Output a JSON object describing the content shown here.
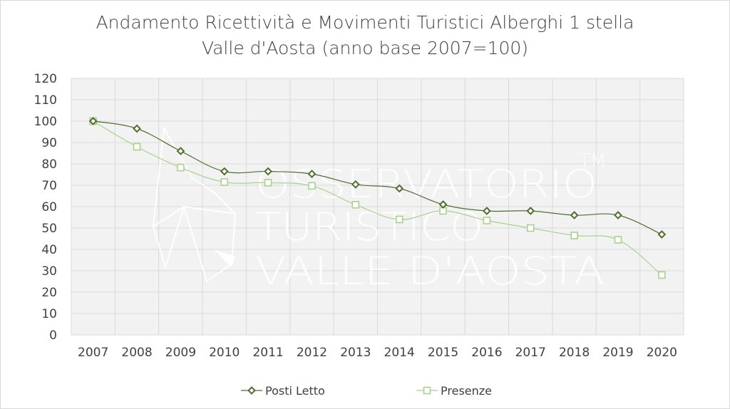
{
  "chart_data": {
    "type": "line",
    "title_line1": "Andamento Ricettività e Movimenti Turistici Alberghi 1 stella",
    "title_line2": "Valle d'Aosta (anno base 2007=100)",
    "xlabel": "",
    "ylabel": "",
    "categories": [
      "2007",
      "2008",
      "2009",
      "2010",
      "2011",
      "2012",
      "2013",
      "2014",
      "2015",
      "2016",
      "2017",
      "2018",
      "2019",
      "2020"
    ],
    "ylim": [
      0,
      120
    ],
    "yticks": [
      0,
      10,
      20,
      30,
      40,
      50,
      60,
      70,
      80,
      90,
      100,
      110,
      120
    ],
    "grid": true,
    "legend_position": "bottom",
    "series": [
      {
        "name": "Posti Letto",
        "marker": "diamond",
        "color": "#4f6f2f",
        "values": [
          100,
          96.5,
          86,
          76.5,
          76.5,
          75.3,
          70.4,
          68.5,
          61,
          58,
          58,
          56,
          56,
          47
        ]
      },
      {
        "name": "Presenze",
        "marker": "square",
        "color": "#a9d18e",
        "values": [
          100,
          88,
          78.3,
          71.5,
          71.2,
          69.7,
          60.9,
          54,
          58,
          53.5,
          50,
          46.5,
          44.5,
          28
        ]
      }
    ],
    "watermark": [
      "OSSERVATORIO",
      "TURISTICO",
      "VALLE D'AOSTA",
      "TM"
    ]
  }
}
